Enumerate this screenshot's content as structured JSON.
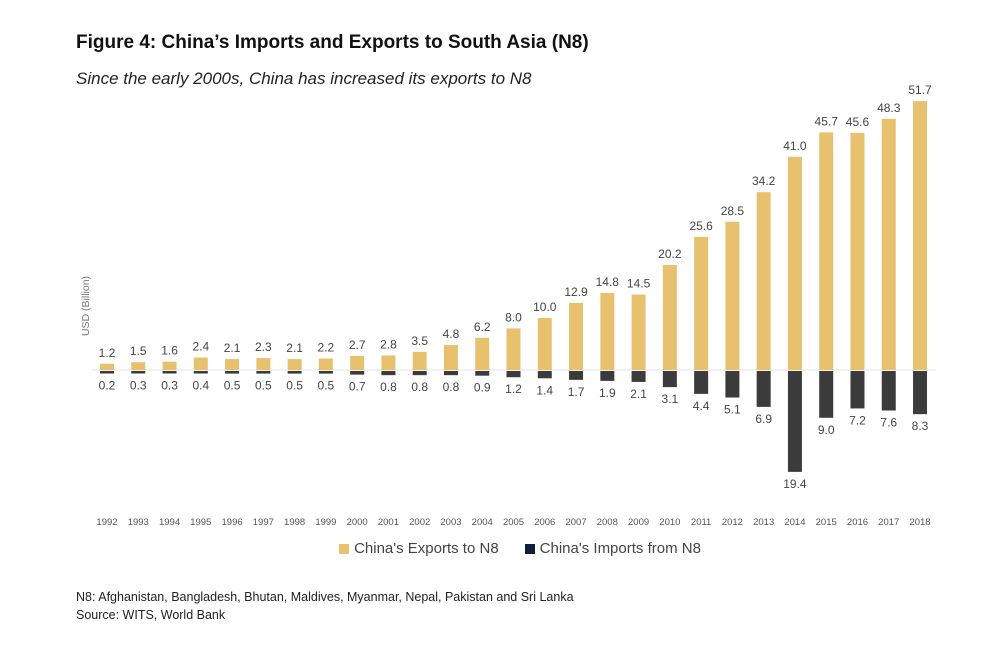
{
  "chart_data": {
    "type": "bar",
    "title": "Figure 4: China’s Imports and Exports to South Asia (N8)",
    "subtitle": "Since the early 2000s, China has increased its exports to N8",
    "xlabel": "",
    "ylabel": "USD (Billion)",
    "categories": [
      "1992",
      "1993",
      "1994",
      "1995",
      "1996",
      "1997",
      "1998",
      "1999",
      "2000",
      "2001",
      "2002",
      "2003",
      "2004",
      "2005",
      "2006",
      "2007",
      "2008",
      "2009",
      "2010",
      "2011",
      "2012",
      "2013",
      "2014",
      "2015",
      "2016",
      "2017",
      "2018"
    ],
    "series": [
      {
        "name": "China's Exports to N8",
        "color": "#E8C16E",
        "direction": "up",
        "values": [
          1.2,
          1.5,
          1.6,
          2.4,
          2.1,
          2.3,
          2.1,
          2.2,
          2.7,
          2.8,
          3.5,
          4.8,
          6.2,
          8.0,
          10.0,
          12.9,
          14.8,
          14.5,
          20.2,
          25.6,
          28.5,
          34.2,
          41.0,
          45.7,
          45.6,
          48.3,
          51.7
        ],
        "labels": [
          "1.2",
          "1.5",
          "1.6",
          "2.4",
          "2.1",
          "2.3",
          "2.1",
          "2.2",
          "2.7",
          "2.8",
          "3.5",
          "4.8",
          "6.2",
          "8.0",
          "10.0",
          "12.9",
          "14.8",
          "14.5",
          "20.2",
          "25.6",
          "28.5",
          "34.2",
          "41.0",
          "45.7",
          "45.6",
          "48.3",
          "51.7"
        ]
      },
      {
        "name": "China's Imports from N8",
        "color": "#3B3B3B",
        "legend_color": "#0F1F3A",
        "direction": "down",
        "values": [
          0.2,
          0.3,
          0.3,
          0.4,
          0.5,
          0.5,
          0.5,
          0.5,
          0.7,
          0.8,
          0.8,
          0.8,
          0.9,
          1.2,
          1.4,
          1.7,
          1.9,
          2.1,
          3.1,
          4.4,
          5.1,
          6.9,
          19.4,
          9.0,
          7.2,
          7.6,
          8.3
        ],
        "labels": [
          "0.2",
          "0.3",
          "0.3",
          "0.4",
          "0.5",
          "0.5",
          "0.5",
          "0.5",
          "0.7",
          "0.8",
          "0.8",
          "0.8",
          "0.9",
          "1.2",
          "1.4",
          "1.7",
          "1.9",
          "2.1",
          "3.1",
          "4.4",
          "5.1",
          "6.9",
          "19.4",
          "9.0",
          "7.2",
          "7.6",
          "8.3"
        ]
      }
    ],
    "ylim": [
      -20,
      52
    ],
    "grid": false,
    "legend_position": "bottom-center",
    "notes": [
      "N8: Afghanistan, Bangladesh, Bhutan, Maldives, Myanmar, Nepal, Pakistan and Sri Lanka",
      "Source: WITS, World Bank"
    ]
  }
}
